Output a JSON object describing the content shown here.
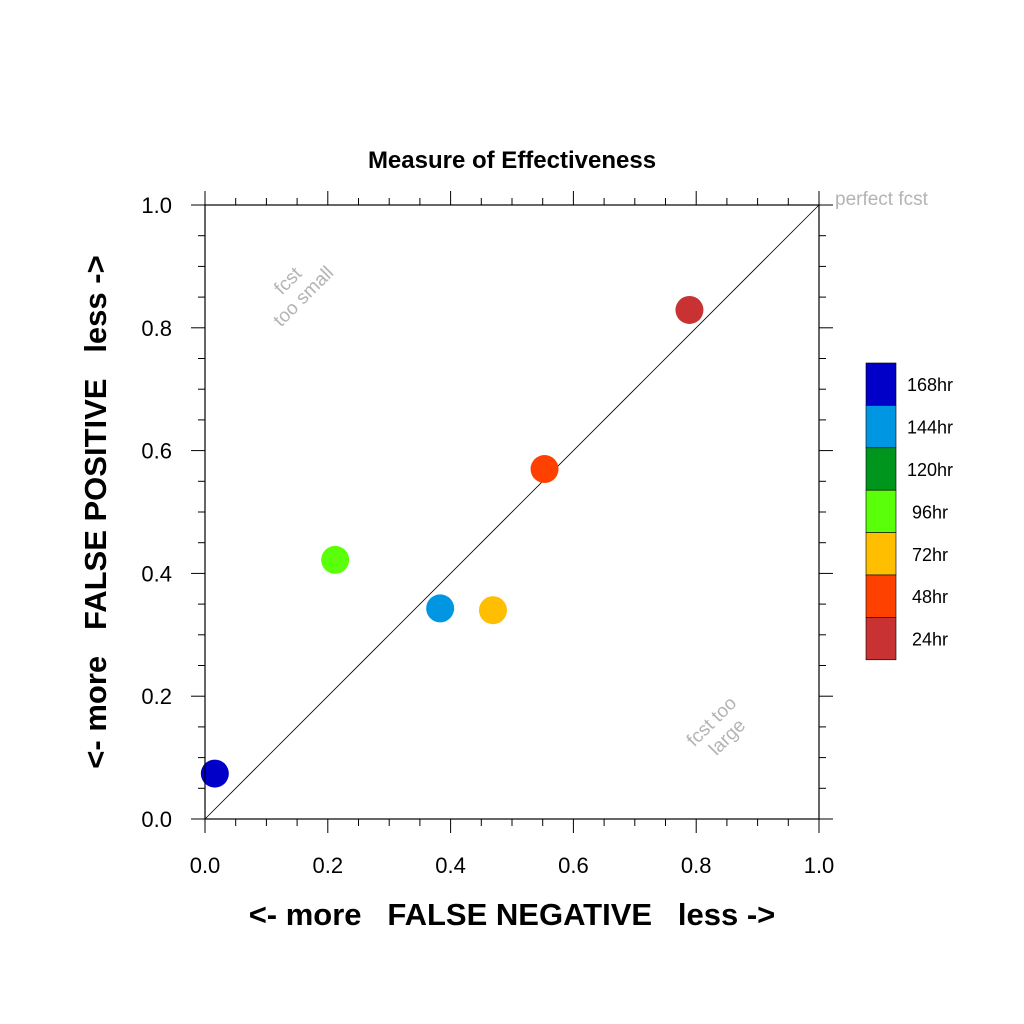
{
  "chart_data": {
    "type": "scatter",
    "title": "Measure of Effectiveness",
    "xlabel": "<- more   FALSE NEGATIVE   less ->",
    "ylabel": "<- more   FALSE POSITIVE   less ->",
    "xlim": [
      0.0,
      1.0
    ],
    "ylim": [
      0.0,
      1.0
    ],
    "xticks": [
      "0.0",
      "0.2",
      "0.4",
      "0.6",
      "0.8",
      "1.0"
    ],
    "yticks": [
      "0.0",
      "0.2",
      "0.4",
      "0.6",
      "0.8",
      "1.0"
    ],
    "grid": false,
    "reference_line": {
      "from": [
        0,
        0
      ],
      "to": [
        1,
        1
      ]
    },
    "annotations": {
      "perfect": "perfect fcst",
      "too_small": [
        "fcst",
        "too small"
      ],
      "too_large": [
        "fcst too",
        "large"
      ]
    },
    "legend_position": "right",
    "series": [
      {
        "name": "168hr",
        "color": "#0000c8",
        "x": 0.016,
        "y": 0.074
      },
      {
        "name": "144hr",
        "color": "#0096e1",
        "x": 0.383,
        "y": 0.343
      },
      {
        "name": "120hr",
        "color": "#00961e",
        "x": null,
        "y": null
      },
      {
        "name": "96hr",
        "color": "#5aff0a",
        "x": 0.212,
        "y": 0.422
      },
      {
        "name": "72hr",
        "color": "#ffbe00",
        "x": 0.469,
        "y": 0.34
      },
      {
        "name": "48hr",
        "color": "#ff4100",
        "x": 0.553,
        "y": 0.57
      },
      {
        "name": "24hr",
        "color": "#c83232",
        "x": 0.789,
        "y": 0.829
      }
    ]
  }
}
